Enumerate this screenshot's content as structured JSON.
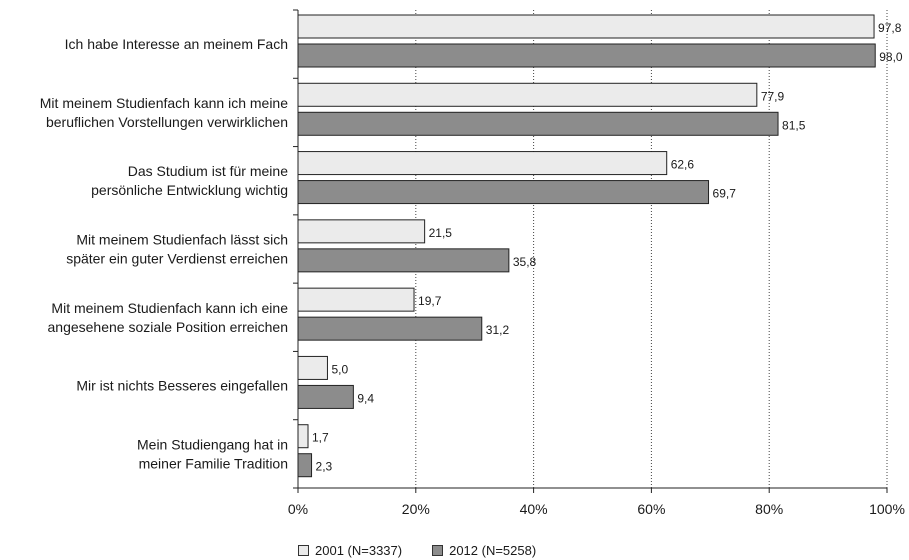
{
  "chart_data": {
    "type": "bar",
    "orientation": "horizontal",
    "categories": [
      [
        "Ich habe Interesse an meinem Fach"
      ],
      [
        "Mit meinem Studienfach kann ich meine",
        "beruflichen Vorstellungen verwirklichen"
      ],
      [
        "Das Studium ist für meine",
        "persönliche Entwicklung wichtig"
      ],
      [
        "Mit meinem Studienfach  lässt sich",
        "später ein guter Verdienst erreichen"
      ],
      [
        "Mit meinem Studienfach kann ich eine",
        "angesehene soziale Position erreichen"
      ],
      [
        "Mir ist nichts Besseres eingefallen"
      ],
      [
        "Mein Studiengang hat in",
        "meiner Familie Tradition"
      ]
    ],
    "series": [
      {
        "name": "2001 (N=3337)",
        "color": "#ebebeb",
        "values": [
          97.8,
          77.9,
          62.6,
          21.5,
          19.7,
          5.0,
          1.7
        ],
        "labels": [
          "97,8",
          "77,9",
          "62,6",
          "21,5",
          "19,7",
          "5,0",
          "1,7"
        ]
      },
      {
        "name": "2012 (N=5258)",
        "color": "#8c8c8c",
        "values": [
          98.0,
          81.5,
          69.7,
          35.8,
          31.2,
          9.4,
          2.3
        ],
        "labels": [
          "98,0",
          "81,5",
          "69,7",
          "35,8",
          "31,2",
          "9,4",
          "2,3"
        ]
      }
    ],
    "xlim": [
      0,
      100
    ],
    "xticks": [
      "0%",
      "20%",
      "40%",
      "60%",
      "80%",
      "100%"
    ],
    "grid": "vertical dotted",
    "legend_position": "bottom"
  }
}
